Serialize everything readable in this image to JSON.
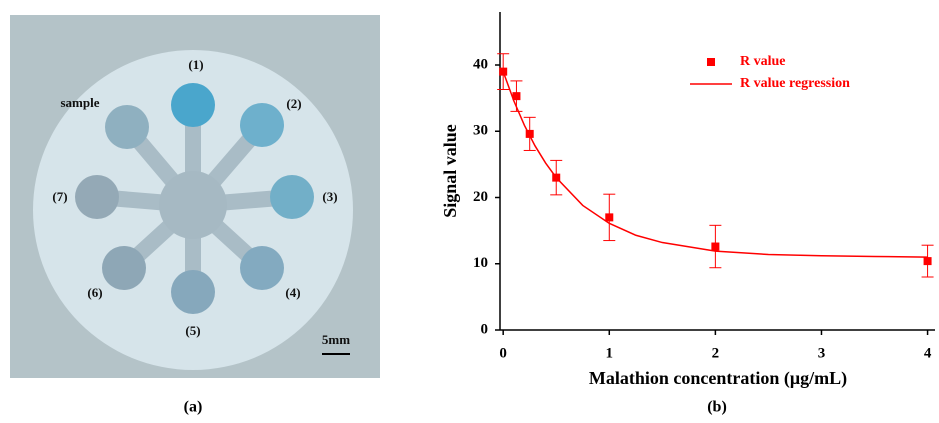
{
  "photo": {
    "wells": [
      "(1)",
      "(2)",
      "(3)",
      "(4)",
      "(5)",
      "(6)",
      "(7)"
    ],
    "sample": "sample",
    "scale": "5mm",
    "caption": "(a)"
  },
  "chart_data": {
    "type": "scatter",
    "caption": "(b)",
    "x_label": "Malathion concentration (μg/mL)",
    "y_label": "Signal  value",
    "xlim": [
      -0.03,
      4.07
    ],
    "ylim": [
      0,
      48
    ],
    "xticks": [
      0,
      1,
      2,
      3,
      4
    ],
    "yticks": [
      0,
      10,
      20,
      30,
      40
    ],
    "series": [
      {
        "name": "R value",
        "color": "#ff0000",
        "x": [
          0,
          0.125,
          0.25,
          0.5,
          1,
          2,
          4
        ],
        "values": [
          39,
          35.3,
          29.6,
          23,
          17,
          12.6,
          10.4
        ],
        "errors": [
          2.7,
          2.3,
          2.5,
          2.6,
          3.5,
          3.2,
          2.4
        ]
      },
      {
        "name": "R value regression",
        "color": "#ff0000",
        "type": "line",
        "x": [
          0,
          0.1,
          0.2,
          0.3,
          0.4,
          0.5,
          0.75,
          1,
          1.25,
          1.5,
          2,
          2.5,
          3,
          3.5,
          4
        ],
        "values": [
          39,
          34.6,
          30.9,
          27.8,
          25.2,
          23,
          18.8,
          16.1,
          14.3,
          13.2,
          11.9,
          11.4,
          11.2,
          11.1,
          11
        ]
      }
    ]
  }
}
